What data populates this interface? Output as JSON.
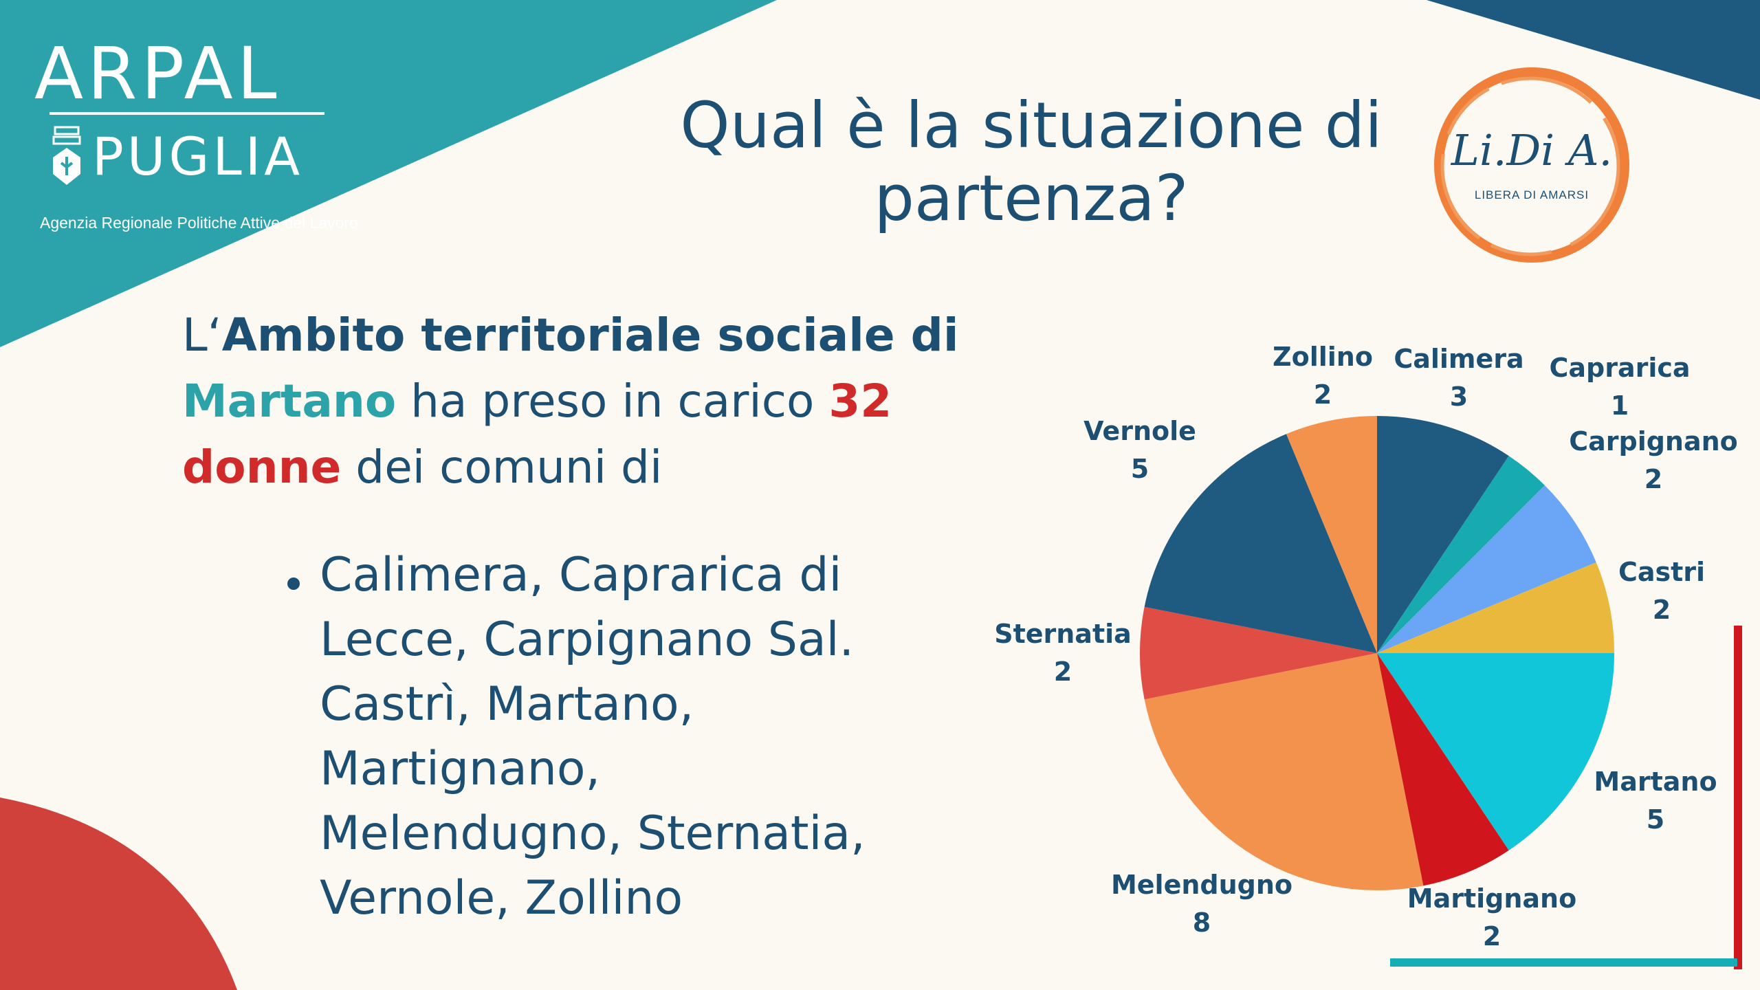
{
  "logo": {
    "brand_top": "ARPAL",
    "brand_bottom": "PUGLIA",
    "agency": "Agenzia Regionale Politiche Attive del Lavoro"
  },
  "title": {
    "line1": "Qual è la situazione di",
    "line2": "partenza?"
  },
  "partner_logo": {
    "name": "Li.Di A.",
    "tagline": "LIBERA DI AMARSI"
  },
  "intro": {
    "prefix": "L‘",
    "bold": "Ambito territoriale sociale di",
    "place": "Martano",
    "middle": " ha preso in carico ",
    "count": "32",
    "women": "donne",
    "suffix": " dei comuni di"
  },
  "bullet": {
    "text": "Calimera, Caprarica di\nLecce, Carpignano Sal.\nCastrì, Martano,\nMartignano,\nMelendugno, Sternatia,\nVernole, Zollino"
  },
  "colors": {
    "navy": "#1d4f73",
    "teal": "#2ba3a9",
    "red": "#d02a2a",
    "orange": "#f2924c"
  },
  "chart_data": {
    "type": "pie",
    "title": "",
    "slices": [
      {
        "label": "Calimera",
        "value": 3,
        "color": "#1f5a80"
      },
      {
        "label": "Caprarica",
        "value": 1,
        "color": "#17aab0"
      },
      {
        "label": "Carpignano",
        "value": 2,
        "color": "#6aa6f5"
      },
      {
        "label": "Castri",
        "value": 2,
        "color": "#eab83c"
      },
      {
        "label": "Martano",
        "value": 5,
        "color": "#12c6da"
      },
      {
        "label": "Martignano",
        "value": 2,
        "color": "#d0161c"
      },
      {
        "label": "Melendugno",
        "value": 8,
        "color": "#f3924c"
      },
      {
        "label": "Sternatia",
        "value": 2,
        "color": "#df4d44"
      },
      {
        "label": "Vernole",
        "value": 5,
        "color": "#1f5a80"
      },
      {
        "label": "Zollino",
        "value": 2,
        "color": "#f3924c"
      }
    ]
  }
}
